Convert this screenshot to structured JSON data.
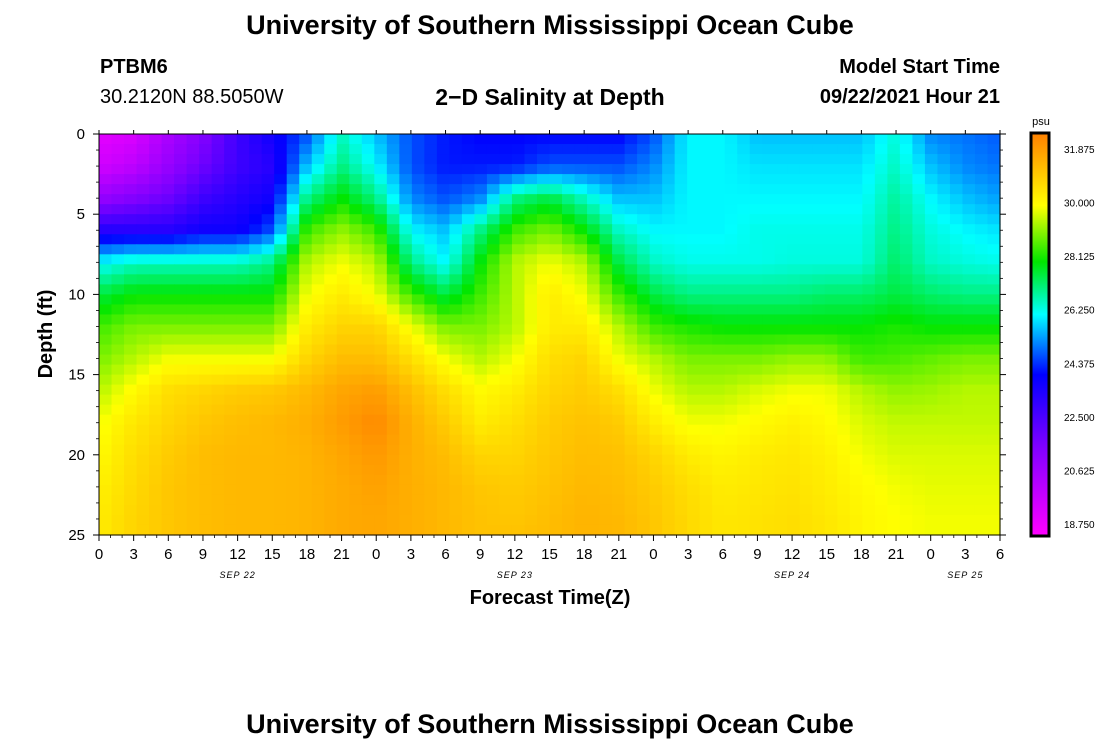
{
  "header": {
    "title": "University of Southern Mississippi Ocean Cube",
    "station_id": "PTBM6",
    "coords": "30.2120N  88.5050W",
    "plot_title": "2−D Salinity at Depth",
    "start_label": "Model Start Time",
    "start_value": "09/22/2021 Hour 21"
  },
  "footer": {
    "title": "University of Southern Mississippi Ocean Cube"
  },
  "chart_data": {
    "type": "heatmap",
    "title": "2−D Salinity at Depth",
    "xlabel": "Forecast Time(Z)",
    "ylabel": "Depth (ft)",
    "x_ticks": [
      "0",
      "3",
      "6",
      "9",
      "12",
      "15",
      "18",
      "21",
      "0",
      "3",
      "6",
      "9",
      "12",
      "15",
      "18",
      "21",
      "0",
      "3",
      "6",
      "9",
      "12",
      "15",
      "18",
      "21",
      "0",
      "3",
      "6"
    ],
    "x_range_hours": [
      0,
      78
    ],
    "date_labels": [
      {
        "label": "SEP 22",
        "hour": 12
      },
      {
        "label": "SEP 23",
        "hour": 36
      },
      {
        "label": "SEP 24",
        "hour": 60
      },
      {
        "label": "SEP 25",
        "hour": 75
      }
    ],
    "y_ticks": [
      0,
      5,
      10,
      15,
      20,
      25
    ],
    "ylim": [
      0,
      25
    ],
    "y_inverted": true,
    "colorbar": {
      "unit": "psu",
      "labels": [
        "31.875",
        "30.000",
        "28.125",
        "26.250",
        "24.375",
        "22.500",
        "20.625",
        "18.750"
      ],
      "range": [
        17.8,
        32.8
      ]
    },
    "grid_hours": [
      0,
      3,
      6,
      9,
      12,
      15,
      18,
      21,
      24,
      27,
      30,
      33,
      36,
      39,
      42,
      45,
      48,
      51,
      54,
      57,
      60,
      63,
      66,
      69,
      72,
      75,
      78
    ],
    "grid_depths": [
      0,
      2,
      4,
      6,
      8,
      10,
      12,
      14,
      16,
      18,
      20,
      22,
      24,
      25
    ],
    "salinity": [
      [
        18.5,
        18.8,
        20.0,
        21.0,
        22.5,
        23.5,
        24.5,
        26.5,
        25.5,
        24.5,
        24.0,
        23.8,
        23.8,
        23.8,
        23.8,
        23.8,
        24.5,
        26.0,
        26.0,
        25.5,
        25.5,
        25.5,
        25.5,
        26.3,
        25.0,
        24.8,
        24.6
      ],
      [
        19.0,
        19.5,
        20.5,
        21.5,
        22.5,
        23.0,
        25.5,
        27.0,
        26.0,
        24.5,
        24.0,
        24.0,
        24.0,
        24.5,
        24.5,
        24.5,
        25.0,
        26.0,
        26.0,
        25.8,
        25.8,
        25.8,
        25.8,
        26.5,
        25.5,
        25.0,
        24.8
      ],
      [
        20.5,
        21.0,
        21.5,
        22.5,
        23.0,
        23.5,
        27.0,
        28.0,
        27.0,
        25.0,
        24.5,
        25.0,
        27.0,
        27.5,
        26.5,
        25.5,
        25.5,
        26.0,
        26.0,
        26.0,
        26.0,
        26.0,
        26.0,
        26.8,
        26.0,
        25.5,
        25.2
      ],
      [
        23.0,
        23.0,
        23.0,
        23.5,
        23.5,
        24.5,
        28.5,
        29.2,
        28.5,
        26.0,
        25.5,
        27.0,
        28.5,
        29.0,
        28.0,
        26.5,
        26.0,
        26.0,
        26.0,
        26.2,
        26.2,
        26.2,
        26.2,
        27.0,
        26.3,
        26.0,
        25.8
      ],
      [
        26.0,
        26.5,
        26.5,
        26.5,
        26.5,
        27.0,
        29.5,
        30.0,
        29.5,
        27.0,
        26.0,
        28.0,
        29.5,
        30.0,
        29.5,
        27.5,
        26.5,
        26.2,
        26.2,
        26.2,
        26.3,
        26.3,
        26.3,
        27.2,
        26.5,
        26.3,
        26.2
      ],
      [
        27.5,
        28.0,
        28.0,
        28.0,
        28.0,
        28.0,
        30.0,
        30.5,
        30.0,
        28.5,
        27.5,
        28.5,
        29.5,
        30.5,
        30.0,
        28.5,
        27.5,
        27.0,
        27.0,
        27.0,
        27.0,
        27.2,
        27.2,
        27.5,
        27.2,
        27.0,
        27.0
      ],
      [
        28.5,
        29.0,
        29.0,
        29.0,
        29.0,
        29.0,
        30.5,
        31.0,
        31.0,
        30.0,
        29.0,
        29.0,
        29.5,
        30.5,
        30.5,
        29.5,
        28.5,
        28.2,
        28.0,
        28.0,
        28.0,
        28.0,
        28.0,
        28.2,
        28.0,
        28.0,
        28.0
      ],
      [
        29.0,
        29.5,
        30.0,
        30.0,
        30.0,
        30.0,
        31.0,
        31.5,
        31.5,
        30.8,
        30.0,
        29.5,
        30.0,
        30.8,
        31.0,
        30.0,
        29.5,
        29.0,
        29.0,
        29.0,
        29.2,
        29.2,
        28.5,
        28.6,
        28.8,
        29.0,
        29.0
      ],
      [
        29.5,
        30.2,
        30.8,
        31.0,
        31.2,
        31.3,
        31.6,
        32.0,
        32.2,
        31.5,
        30.8,
        30.2,
        30.5,
        31.0,
        31.2,
        30.8,
        30.0,
        29.5,
        29.5,
        29.8,
        30.0,
        30.0,
        29.5,
        29.2,
        29.3,
        29.5,
        29.5
      ],
      [
        30.0,
        30.6,
        31.0,
        31.3,
        31.5,
        31.6,
        31.8,
        32.2,
        32.6,
        31.8,
        31.2,
        30.5,
        30.8,
        31.2,
        31.4,
        31.2,
        30.5,
        30.0,
        30.0,
        30.2,
        30.4,
        30.2,
        29.8,
        29.6,
        29.6,
        29.6,
        29.6
      ],
      [
        30.2,
        30.8,
        31.2,
        31.5,
        31.6,
        31.6,
        31.7,
        32.0,
        32.3,
        31.8,
        31.5,
        31.0,
        31.0,
        31.3,
        31.5,
        31.4,
        31.0,
        30.5,
        30.3,
        30.5,
        30.6,
        30.4,
        30.0,
        29.8,
        29.8,
        29.8,
        29.8
      ],
      [
        30.4,
        30.9,
        31.3,
        31.5,
        31.6,
        31.6,
        31.7,
        31.9,
        32.1,
        31.8,
        31.6,
        31.3,
        31.2,
        31.4,
        31.6,
        31.5,
        31.2,
        30.8,
        30.5,
        30.6,
        30.7,
        30.5,
        30.2,
        30.0,
        29.9,
        29.9,
        29.9
      ],
      [
        30.5,
        31.0,
        31.3,
        31.5,
        31.6,
        31.6,
        31.7,
        31.9,
        32.0,
        31.8,
        31.6,
        31.4,
        31.3,
        31.5,
        31.7,
        31.6,
        31.3,
        30.9,
        30.6,
        30.7,
        30.8,
        30.6,
        30.3,
        30.1,
        30.0,
        30.0,
        30.0
      ],
      [
        30.5,
        31.0,
        31.3,
        31.5,
        31.6,
        31.6,
        31.7,
        31.9,
        32.0,
        31.8,
        31.6,
        31.4,
        31.4,
        31.5,
        31.7,
        31.6,
        31.3,
        30.9,
        30.6,
        30.7,
        30.8,
        30.6,
        30.3,
        30.1,
        30.0,
        30.0,
        30.0
      ]
    ]
  }
}
